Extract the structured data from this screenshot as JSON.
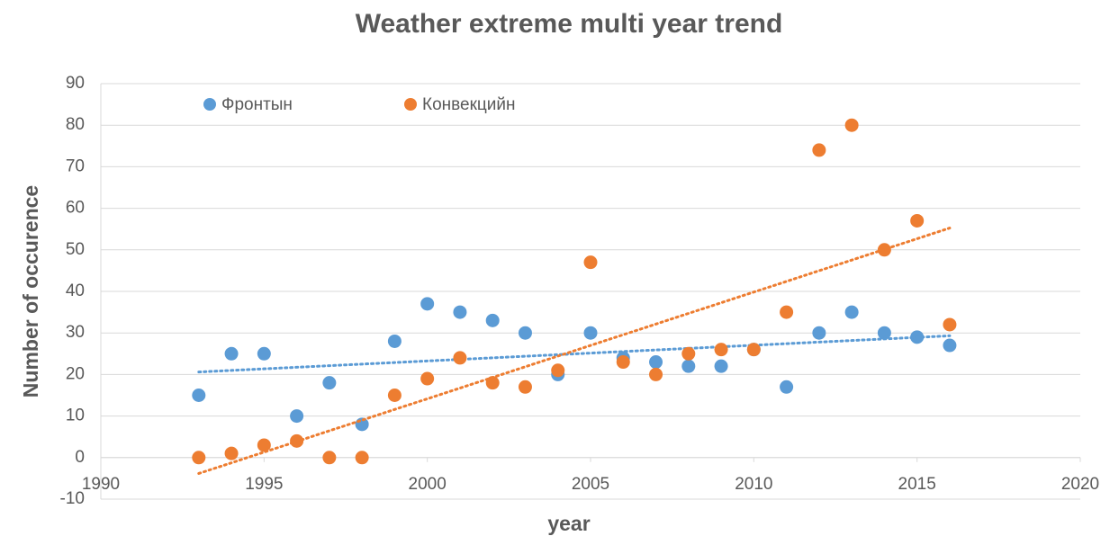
{
  "chart_data": {
    "type": "scatter",
    "title": "Weather extreme multi year trend",
    "x_label": "year",
    "y_label": "Number of occurence",
    "x": [
      1993,
      1994,
      1995,
      1996,
      1997,
      1998,
      1999,
      2000,
      2001,
      2002,
      2003,
      2004,
      2005,
      2006,
      2007,
      2008,
      2009,
      2010,
      2011,
      2012,
      2013,
      2014,
      2015,
      2016
    ],
    "series": [
      {
        "name": "Фронтын",
        "color": "#5b9bd5",
        "values": [
          15,
          25,
          25,
          10,
          18,
          8,
          28,
          37,
          35,
          33,
          30,
          20,
          30,
          24,
          23,
          22,
          22,
          26,
          17,
          30,
          35,
          30,
          29,
          27
        ]
      },
      {
        "name": "Конвекцийн",
        "color": "#ed7d31",
        "values": [
          0,
          1,
          3,
          4,
          0,
          0,
          15,
          19,
          24,
          18,
          17,
          21,
          47,
          23,
          20,
          25,
          26,
          26,
          35,
          74,
          80,
          50,
          57,
          32
        ]
      }
    ],
    "xlim": [
      1990,
      2020
    ],
    "xticks": [
      1990,
      1995,
      2000,
      2005,
      2010,
      2015,
      2020
    ],
    "ylim": [
      -10,
      90
    ],
    "yticks": [
      -10,
      0,
      10,
      20,
      30,
      40,
      50,
      60,
      70,
      80,
      90
    ],
    "grid": true,
    "trendline": true,
    "legend": "top-left"
  }
}
